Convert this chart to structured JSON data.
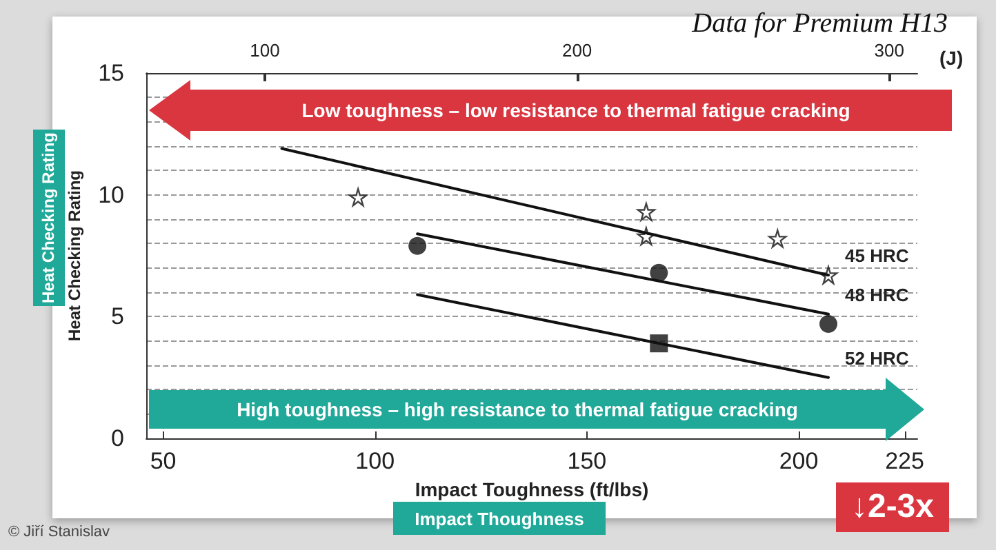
{
  "chart_data": {
    "type": "scatter",
    "title": "Data for Premium H13",
    "xlabel": "Impact Toughness (ft/lbs)",
    "ylabel": "Heat Checking Rating",
    "x2label": "(J)",
    "xlim": [
      46,
      228
    ],
    "xticks": [
      50,
      100,
      150,
      200,
      225
    ],
    "x2lim": [
      62,
      309
    ],
    "x2ticks": [
      100,
      200,
      300
    ],
    "ylim": [
      0,
      15
    ],
    "yticks": [
      0,
      {
        "value": 1,
        "label": null
      },
      {
        "value": 2,
        "label": null
      },
      {
        "value": 3,
        "label": null
      },
      {
        "value": 4,
        "label": null
      },
      5,
      {
        "value": 6,
        "label": null
      },
      {
        "value": 7,
        "label": null
      },
      {
        "value": 8,
        "label": null
      },
      {
        "value": 9,
        "label": null
      },
      10,
      {
        "value": 11,
        "label": null
      },
      {
        "value": 12,
        "label": null
      },
      {
        "value": 13,
        "label": null
      },
      {
        "value": 14,
        "label": null
      },
      15
    ],
    "grid": "y",
    "legend": false,
    "series": [
      {
        "marker": "star",
        "color": "#111111",
        "x": [
          96,
          164,
          164,
          195,
          207
        ],
        "values": [
          9.9,
          9.3,
          8.3,
          8.2,
          6.7
        ]
      },
      {
        "marker": "circle",
        "color": "#111111",
        "x": [
          110,
          167,
          207
        ],
        "values": [
          7.9,
          6.8,
          4.7
        ]
      },
      {
        "marker": "square",
        "color": "#111111",
        "x": [
          167
        ],
        "values": [
          3.9
        ]
      },
      {
        "type": "line",
        "name": "45 HRC",
        "marker": "none",
        "color": "#111111",
        "x": [
          78,
          207
        ],
        "values": [
          11.9,
          6.7
        ]
      },
      {
        "type": "line",
        "name": "48 HRC",
        "marker": "none",
        "color": "#111111",
        "x": [
          110,
          207
        ],
        "values": [
          8.4,
          5.1
        ]
      },
      {
        "type": "line",
        "name": "52 HRC",
        "marker": "none",
        "color": "#111111",
        "x": [
          110,
          207
        ],
        "values": [
          5.9,
          2.5
        ]
      }
    ],
    "annotations": [
      "Low toughness – low resistance to thermal fatigue cracking",
      "High toughness – high resistance to thermal fatigue cracking",
      "Heat Checking Rating",
      "Impact Thoughness",
      "↓2-3x",
      "© Jiří Stanislav"
    ]
  }
}
